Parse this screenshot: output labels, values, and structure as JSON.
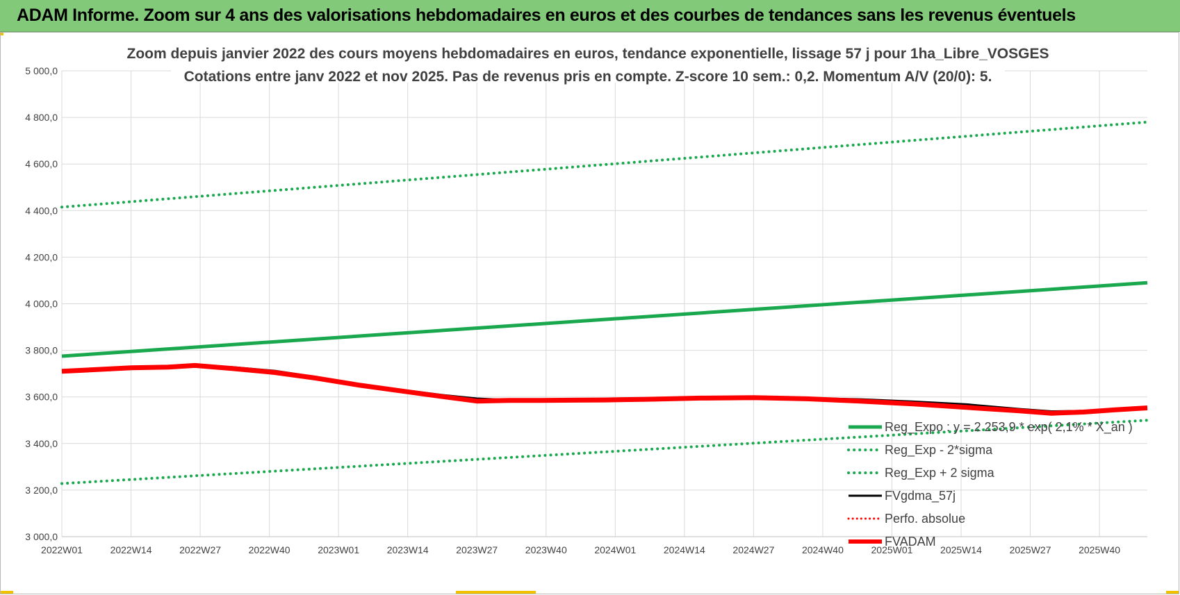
{
  "banner": {
    "title": "ADAM Informe. Zoom sur 4 ans des valorisations hebdomadaires en euros et des courbes de tendances sans les revenus éventuels"
  },
  "colors": {
    "banner_bg": "#83c97a",
    "trend_green": "#1aa84f",
    "fv_black": "#000000",
    "fvadam_red": "#ff0000",
    "grid": "#d9d9d9"
  },
  "chart_data": {
    "type": "line",
    "title_line1": "Zoom depuis janvier 2022 des cours moyens hebdomadaires en euros, tendance exponentielle, lissage 57 j pour 1ha_Libre_VOSGES",
    "title_line2": "Cotations entre janv 2022 et nov 2025. Pas de revenus pris en compte. Z-score 10 sem.: 0,2. Momentum A/V (20/0): 5.",
    "ylim": [
      3000,
      5000
    ],
    "y_ticks": [
      "3 000,0",
      "3 200,0",
      "3 400,0",
      "3 600,0",
      "3 800,0",
      "4 000,0",
      "4 200,0",
      "4 400,0",
      "4 600,0",
      "4 800,0",
      "5 000,0"
    ],
    "x_tick_labels": [
      "2022W01",
      "2022W14",
      "2022W27",
      "2022W40",
      "2023W01",
      "2023W14",
      "2023W27",
      "2023W40",
      "2024W01",
      "2024W14",
      "2024W27",
      "2024W40",
      "2025W01",
      "2025W14",
      "2025W27",
      "2025W40"
    ],
    "x_range_weeks": [
      0,
      204
    ],
    "series": [
      {
        "name": "Reg_Expo : y = 2 253,9 * exp( 2,1% * X_an )",
        "style": "solid-green",
        "x": [
          0,
          204
        ],
        "y": [
          3775,
          4090
        ]
      },
      {
        "name": "Reg_Exp - 2*sigma",
        "style": "dotted-green",
        "x": [
          0,
          204
        ],
        "y": [
          3228,
          3500
        ]
      },
      {
        "name": "Reg_Exp + 2 sigma",
        "style": "dotted-green",
        "x": [
          0,
          204
        ],
        "y": [
          4415,
          4780
        ]
      },
      {
        "name": "FVgdma_57j",
        "style": "solid-black",
        "x": [
          0,
          13,
          20,
          25,
          32,
          40,
          48,
          56,
          64,
          72,
          78,
          84,
          90,
          96,
          102,
          110,
          120,
          130,
          140,
          150,
          160,
          170,
          180,
          186,
          192,
          198,
          204
        ],
        "y": [
          3710,
          3725,
          3728,
          3730,
          3728,
          3712,
          3685,
          3655,
          3630,
          3607,
          3593,
          3587,
          3585,
          3585,
          3587,
          3590,
          3594,
          3596,
          3595,
          3590,
          3580,
          3568,
          3548,
          3538,
          3540,
          3548,
          3553
        ]
      },
      {
        "name": "Perfo. absolue",
        "style": "dotted-red",
        "x": [],
        "y": []
      },
      {
        "name": "FVADAM",
        "style": "solid-red-thick",
        "x": [
          0,
          13,
          20,
          25,
          32,
          40,
          48,
          56,
          64,
          72,
          78,
          84,
          90,
          96,
          102,
          110,
          120,
          130,
          140,
          150,
          160,
          170,
          180,
          186,
          192,
          198,
          204
        ],
        "y": [
          3710,
          3725,
          3728,
          3735,
          3722,
          3705,
          3680,
          3650,
          3625,
          3600,
          3582,
          3585,
          3585,
          3586,
          3587,
          3590,
          3595,
          3597,
          3592,
          3582,
          3570,
          3555,
          3540,
          3530,
          3535,
          3545,
          3553
        ]
      }
    ],
    "legend_position": "right"
  }
}
